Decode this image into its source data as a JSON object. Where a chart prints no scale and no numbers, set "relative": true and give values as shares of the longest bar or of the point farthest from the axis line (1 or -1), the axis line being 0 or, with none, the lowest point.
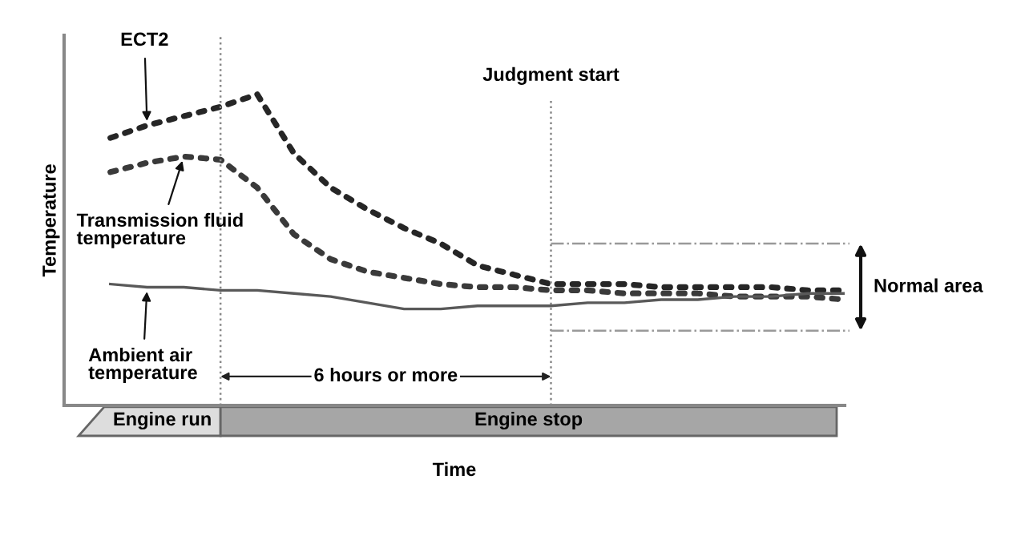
{
  "chart_data": {
    "type": "line",
    "relative": true,
    "xlabel": "Time",
    "ylabel": "Temperature",
    "categories": [
      null,
      null,
      null,
      null,
      null,
      null,
      null,
      null,
      null,
      null,
      null,
      null,
      null,
      null,
      null,
      null,
      null,
      null,
      null,
      null,
      null
    ],
    "series": [
      {
        "name": "ECT2",
        "color": "#262626",
        "line_style": "dotted",
        "values": [
          0.86,
          0.9,
          0.93,
          0.96,
          1.0,
          0.81,
          0.7,
          0.63,
          0.57,
          0.52,
          0.45,
          0.42,
          0.39,
          0.39,
          0.39,
          0.38,
          0.38,
          0.38,
          0.38,
          0.37,
          0.37
        ]
      },
      {
        "name": "Transmission fluid temperature",
        "color": "#3a3a3a",
        "line_style": "dotted",
        "values": [
          0.75,
          0.78,
          0.8,
          0.79,
          0.7,
          0.55,
          0.47,
          0.43,
          0.41,
          0.39,
          0.38,
          0.38,
          0.37,
          0.37,
          0.36,
          0.36,
          0.36,
          0.35,
          0.35,
          0.35,
          0.34
        ]
      },
      {
        "name": "Ambient air temperature",
        "color": "#595959",
        "line_style": "solid",
        "values": [
          0.39,
          0.38,
          0.38,
          0.37,
          0.37,
          0.36,
          0.35,
          0.33,
          0.31,
          0.31,
          0.32,
          0.32,
          0.32,
          0.33,
          0.33,
          0.34,
          0.34,
          0.35,
          0.35,
          0.36,
          0.36
        ]
      }
    ],
    "legend": "left",
    "ref_lines": [
      {
        "axis": "y",
        "value": 0.52,
        "color": "#999999",
        "line_style": "dashdot"
      },
      {
        "axis": "y",
        "value": 0.24,
        "color": "#999999",
        "line_style": "dashdot"
      }
    ],
    "annotations": [
      "Engine run",
      "Engine stop",
      "6 hours or more",
      "Judgment start",
      "Normal area"
    ]
  }
}
